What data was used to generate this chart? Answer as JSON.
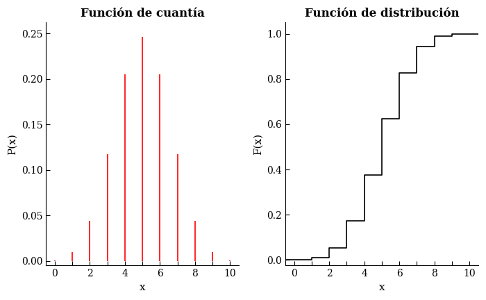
{
  "title_left": "Función de cuantía",
  "title_right": "Función de distribución",
  "xlabel": "x",
  "ylabel_left": "P(x)",
  "ylabel_right": "F(x)",
  "x_values": [
    0,
    1,
    2,
    3,
    4,
    5,
    6,
    7,
    8,
    9,
    10
  ],
  "pmf": [
    0.0009765625,
    0.009765625,
    0.0439453125,
    0.1171875,
    0.205078125,
    0.24609375,
    0.205078125,
    0.1171875,
    0.0439453125,
    0.009765625,
    0.0009765625
  ],
  "cdf": [
    0.0009765625,
    0.0107421875,
    0.0546875,
    0.171875,
    0.376953125,
    0.623046875,
    0.828125,
    0.9453125,
    0.9892578125,
    0.9990234375,
    1.0
  ],
  "line_color_pmf": "#FF0000",
  "line_color_cdf": "#000000",
  "background_color": "#FFFFFF",
  "xlim_left": [
    -0.5,
    10.5
  ],
  "ylim_left": [
    -0.005,
    0.262
  ],
  "xlim_right": [
    -0.5,
    10.5
  ],
  "ylim_right": [
    -0.025,
    1.05
  ],
  "xticks_major": [
    0,
    2,
    4,
    6,
    8,
    10
  ],
  "xticks_minor": [
    1,
    3,
    5,
    7,
    9
  ],
  "yticks_left": [
    0.0,
    0.05,
    0.1,
    0.15,
    0.2,
    0.25
  ],
  "yticks_right": [
    0.0,
    0.2,
    0.4,
    0.6,
    0.8,
    1.0
  ],
  "title_fontsize": 12,
  "label_fontsize": 11,
  "tick_fontsize": 10
}
